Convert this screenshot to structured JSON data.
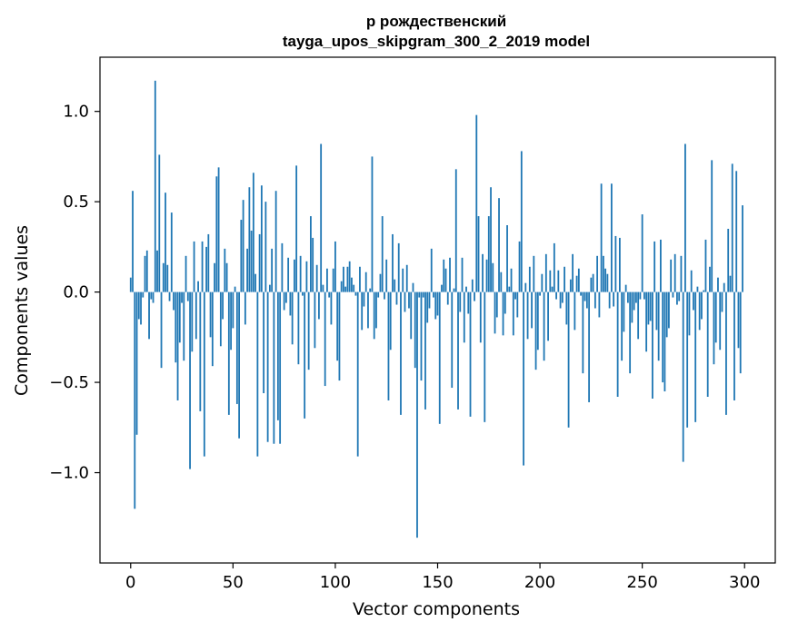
{
  "chart_data": {
    "type": "bar",
    "title_lines": [
      "р рождественский",
      "tayga_upos_skipgram_300_2_2019 model"
    ],
    "xlabel": "Vector components",
    "ylabel": "Components values",
    "xlim": [
      -15,
      315
    ],
    "ylim": [
      -1.5,
      1.3
    ],
    "xticks": [
      0,
      50,
      100,
      150,
      200,
      250,
      300
    ],
    "xtick_labels": [
      "0",
      "50",
      "100",
      "150",
      "200",
      "250",
      "300"
    ],
    "yticks": [
      -1.0,
      -0.5,
      0.0,
      0.5,
      1.0
    ],
    "ytick_labels": [
      "−1.0",
      "−0.5",
      "0.0",
      "0.5",
      "1.0"
    ],
    "bar_color": "#1f77b4",
    "values": [
      0.08,
      0.56,
      -1.2,
      -0.79,
      -0.15,
      -0.18,
      -0.03,
      0.2,
      0.23,
      -0.26,
      -0.04,
      -0.06,
      1.17,
      0.23,
      0.76,
      -0.42,
      0.16,
      0.55,
      0.15,
      -0.05,
      0.44,
      -0.1,
      -0.39,
      -0.6,
      -0.28,
      -0.06,
      -0.38,
      0.2,
      -0.05,
      -0.98,
      -0.33,
      0.28,
      -0.26,
      0.06,
      -0.66,
      0.28,
      -0.91,
      0.25,
      0.32,
      -0.25,
      -0.41,
      0.16,
      0.64,
      0.69,
      -0.3,
      -0.15,
      0.24,
      0.16,
      -0.68,
      -0.32,
      -0.2,
      0.03,
      -0.62,
      -0.81,
      0.4,
      0.51,
      -0.18,
      0.24,
      0.58,
      0.34,
      0.66,
      0.1,
      -0.91,
      0.32,
      0.59,
      -0.56,
      0.5,
      -0.83,
      0.04,
      0.24,
      -0.84,
      0.56,
      -0.71,
      -0.84,
      0.27,
      -0.1,
      -0.06,
      0.19,
      -0.13,
      -0.29,
      0.18,
      0.7,
      -0.4,
      0.2,
      -0.02,
      -0.7,
      0.17,
      -0.43,
      0.42,
      0.3,
      -0.31,
      0.15,
      -0.15,
      0.82,
      0.04,
      -0.52,
      0.13,
      -0.03,
      -0.18,
      0.13,
      0.28,
      -0.38,
      -0.49,
      0.06,
      0.14,
      0.03,
      0.14,
      0.17,
      0.08,
      0.04,
      -0.02,
      -0.91,
      0.14,
      -0.21,
      -0.08,
      0.11,
      -0.2,
      0.02,
      0.75,
      -0.26,
      -0.2,
      -0.03,
      0.1,
      0.42,
      -0.04,
      0.18,
      -0.6,
      -0.32,
      0.32,
      0.07,
      -0.07,
      0.27,
      -0.68,
      0.13,
      -0.11,
      0.15,
      -0.09,
      -0.26,
      0.05,
      -0.42,
      -1.36,
      -0.03,
      -0.49,
      -0.03,
      -0.65,
      -0.17,
      -0.09,
      0.24,
      -0.03,
      -0.15,
      -0.13,
      -0.73,
      0.04,
      0.18,
      0.13,
      -0.07,
      0.19,
      -0.53,
      0.02,
      0.68,
      -0.65,
      -0.11,
      0.19,
      -0.28,
      0.03,
      -0.12,
      -0.69,
      0.07,
      -0.05,
      0.98,
      0.42,
      -0.28,
      0.21,
      -0.72,
      0.18,
      0.42,
      0.58,
      0.16,
      -0.23,
      -0.14,
      0.52,
      0.11,
      -0.24,
      -0.12,
      0.37,
      0.03,
      0.13,
      -0.24,
      -0.04,
      -0.14,
      0.28,
      0.78,
      -0.96,
      0.05,
      -0.26,
      0.14,
      -0.2,
      0.2,
      -0.43,
      -0.32,
      -0.02,
      0.1,
      -0.38,
      0.21,
      -0.27,
      0.12,
      0.03,
      0.27,
      -0.04,
      0.12,
      -0.09,
      -0.06,
      0.14,
      -0.18,
      -0.75,
      0.07,
      0.21,
      -0.21,
      0.09,
      0.13,
      -0.02,
      -0.45,
      -0.05,
      -0.09,
      -0.61,
      0.08,
      0.1,
      -0.09,
      0.2,
      -0.14,
      0.6,
      0.2,
      0.13,
      0.1,
      -0.09,
      0.6,
      -0.08,
      0.31,
      -0.58,
      0.3,
      -0.38,
      -0.22,
      0.04,
      -0.06,
      -0.45,
      -0.17,
      -0.1,
      -0.06,
      -0.26,
      -0.04,
      0.43,
      -0.04,
      -0.33,
      -0.18,
      -0.16,
      -0.59,
      0.28,
      -0.21,
      -0.38,
      0.29,
      -0.5,
      -0.55,
      -0.25,
      -0.2,
      0.18,
      -0.03,
      0.21,
      -0.07,
      -0.05,
      0.2,
      -0.94,
      0.82,
      -0.75,
      -0.24,
      0.12,
      -0.1,
      -0.72,
      0.03,
      -0.21,
      -0.15,
      0.01,
      0.29,
      -0.58,
      0.14,
      0.73,
      -0.4,
      -0.28,
      0.08,
      -0.32,
      -0.11,
      0.05,
      -0.68,
      0.35,
      0.09,
      0.71,
      -0.6,
      0.67,
      -0.31,
      -0.45,
      0.48
    ]
  }
}
